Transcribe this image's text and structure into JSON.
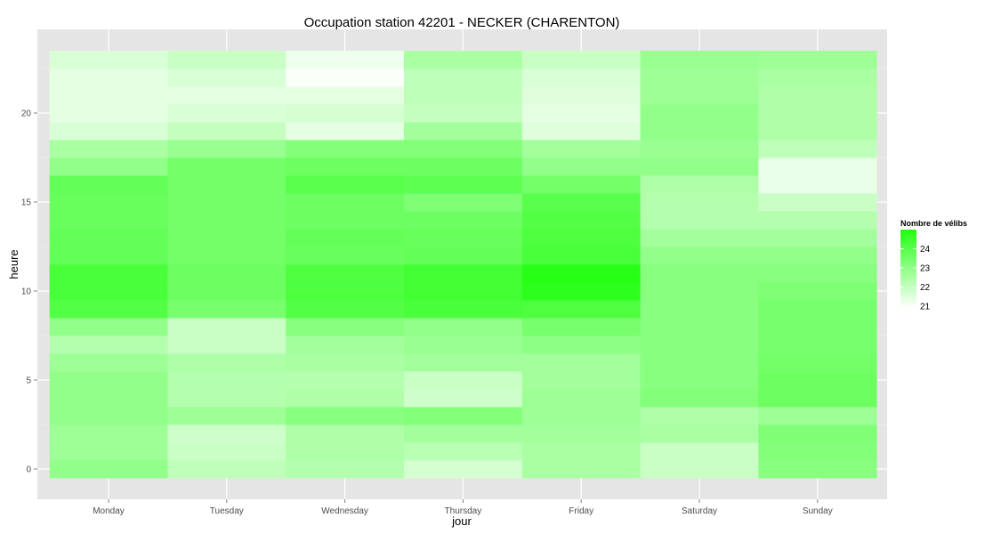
{
  "chart_data": {
    "type": "heatmap",
    "title": "Occupation station 42201 - NECKER (CHARENTON)",
    "xlabel": "jour",
    "ylabel": "heure",
    "categories": [
      "Monday",
      "Tuesday",
      "Wednesday",
      "Thursday",
      "Friday",
      "Saturday",
      "Sunday"
    ],
    "y": [
      0,
      1,
      2,
      3,
      4,
      5,
      6,
      7,
      8,
      9,
      10,
      11,
      12,
      13,
      14,
      15,
      16,
      17,
      18,
      19,
      20,
      21,
      22,
      23
    ],
    "ylim": [
      -0.5,
      23.5
    ],
    "yticks": [
      0,
      5,
      10,
      15,
      20
    ],
    "grid": true,
    "values": [
      [
        22.9,
        22.1,
        22.3,
        21.7,
        22.5,
        21.9,
        23.1
      ],
      [
        22.7,
        21.9,
        22.4,
        22.2,
        22.5,
        21.9,
        23.2
      ],
      [
        22.7,
        21.8,
        22.4,
        22.6,
        22.6,
        22.5,
        23.3
      ],
      [
        22.9,
        22.7,
        23.1,
        23.2,
        22.7,
        22.4,
        22.7
      ],
      [
        22.9,
        22.3,
        22.4,
        21.8,
        22.7,
        23.2,
        23.6
      ],
      [
        22.9,
        22.3,
        22.3,
        21.9,
        22.6,
        23.1,
        23.6
      ],
      [
        22.7,
        22.4,
        22.5,
        22.6,
        22.6,
        23.1,
        23.5
      ],
      [
        22.3,
        21.9,
        22.6,
        22.8,
        23.0,
        23.1,
        23.4
      ],
      [
        22.9,
        21.9,
        23.1,
        22.9,
        23.4,
        23.1,
        23.4
      ],
      [
        24.1,
        23.4,
        24.1,
        24.3,
        24.2,
        23.1,
        23.4
      ],
      [
        24.3,
        23.6,
        24.2,
        24.4,
        24.8,
        23.1,
        23.3
      ],
      [
        24.3,
        23.6,
        24.2,
        24.4,
        24.9,
        23.1,
        23.1
      ],
      [
        23.8,
        23.5,
        23.7,
        23.8,
        24.3,
        22.9,
        22.9
      ],
      [
        23.8,
        23.5,
        23.8,
        23.7,
        24.2,
        22.6,
        22.6
      ],
      [
        23.7,
        23.5,
        23.6,
        23.6,
        24.1,
        22.3,
        22.3
      ],
      [
        23.7,
        23.5,
        23.6,
        23.3,
        24.0,
        22.3,
        21.9
      ],
      [
        23.8,
        23.5,
        24.0,
        23.9,
        23.5,
        22.4,
        21.3
      ],
      [
        22.9,
        23.5,
        23.6,
        23.6,
        22.9,
        22.9,
        21.3
      ],
      [
        22.5,
        22.8,
        23.2,
        23.2,
        22.6,
        22.8,
        22.1
      ],
      [
        21.6,
        22.0,
        21.4,
        22.6,
        21.5,
        22.9,
        22.4
      ],
      [
        21.4,
        21.6,
        21.7,
        22.0,
        21.4,
        22.9,
        22.4
      ],
      [
        21.4,
        21.4,
        21.4,
        22.1,
        21.5,
        22.7,
        22.4
      ],
      [
        21.4,
        21.6,
        21.0,
        22.1,
        21.6,
        22.7,
        22.5
      ],
      [
        21.6,
        21.9,
        21.2,
        22.5,
        21.9,
        22.8,
        22.7
      ]
    ],
    "colorbar": {
      "title": "Nombre de vélibs",
      "ticks": [
        21,
        22,
        23,
        24
      ],
      "range": [
        20.9,
        25.0
      ],
      "low_color": "#ffffff",
      "high_color": "#22ff11"
    },
    "colors": {
      "panel_background": "#e5e5e5",
      "grid": "#ffffff"
    }
  }
}
